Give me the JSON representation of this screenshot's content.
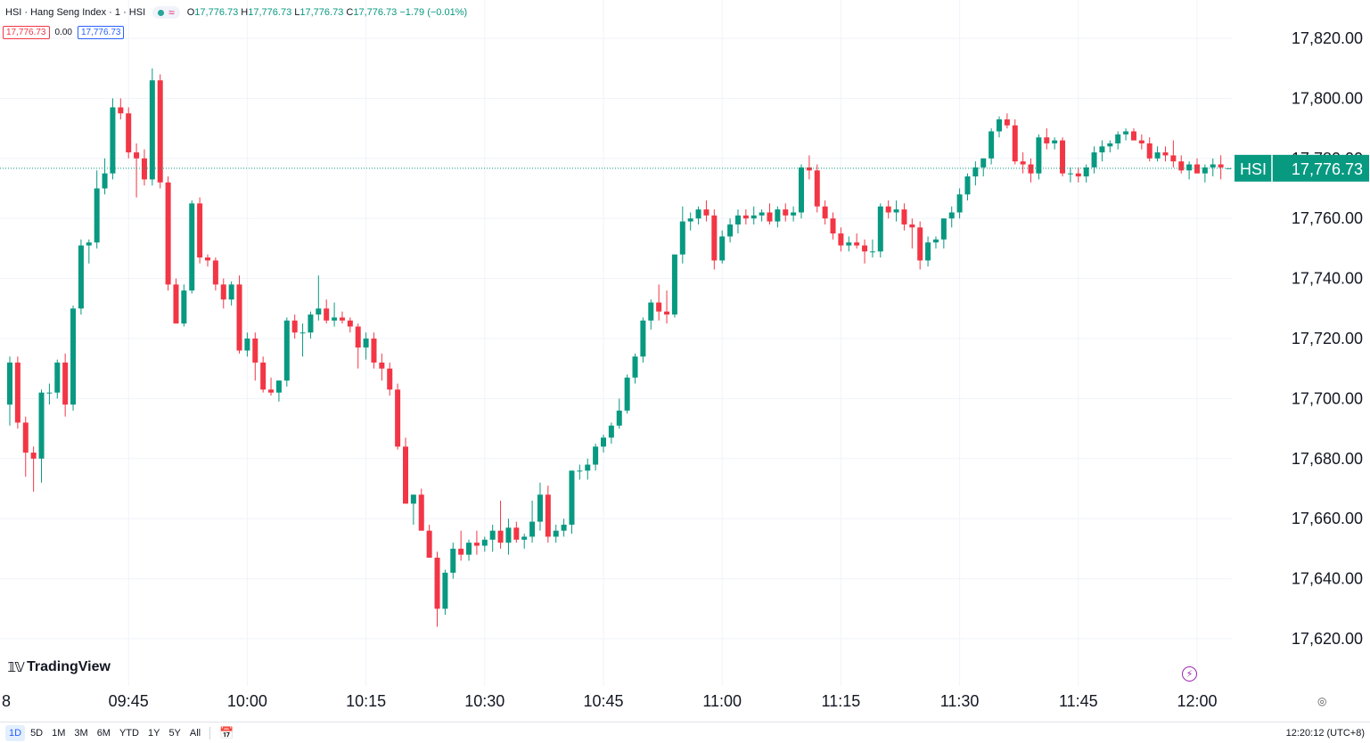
{
  "legend": {
    "title": "HSI · Hang Seng Index · 1 · HSI",
    "open_label": "O",
    "open": "17,776.73",
    "high_label": "H",
    "high": "17,776.73",
    "low_label": "L",
    "low": "17,776.73",
    "close_label": "C",
    "close": "17,776.73",
    "change": "−1.79 (−0.01%)",
    "tag_red": "17,776.73",
    "tag_zero": "0.00",
    "tag_blue": "17,776.73",
    "wave_icon": "≈"
  },
  "price_label": {
    "symbol": "HSI",
    "value": "17,776.73"
  },
  "logo_text": "TradingView",
  "bottom": {
    "ranges": [
      "1D",
      "5D",
      "1M",
      "3M",
      "6M",
      "YTD",
      "1Y",
      "5Y",
      "All"
    ],
    "active_range": "1D",
    "clock": "12:20:12 (UTC+8)"
  },
  "colors": {
    "up": "#089981",
    "down": "#f23645",
    "grid": "#f0f3fa",
    "price_tag": "#089981"
  },
  "chart_data": {
    "type": "candlestick",
    "ylim": [
      17615,
      17830
    ],
    "y_ticks": [
      17620,
      17640,
      17660,
      17680,
      17700,
      17720,
      17740,
      17760,
      17780,
      17800,
      17820
    ],
    "y_tick_labels": [
      "17,620.00",
      "17,640.00",
      "17,660.00",
      "17,680.00",
      "17,700.00",
      "17,720.00",
      "17,740.00",
      "17,760.00",
      "17,780.00",
      "17,800.00",
      "17,820.00"
    ],
    "x_tick_labels": [
      "8",
      "09:45",
      "10:00",
      "10:15",
      "10:30",
      "10:45",
      "11:00",
      "11:15",
      "11:30",
      "11:45",
      "12:00"
    ],
    "x_tick_minutes": [
      -1,
      15,
      30,
      45,
      60,
      75,
      90,
      105,
      120,
      135,
      150
    ],
    "last_price": 17776.73,
    "candles": [
      [
        17698,
        17714,
        17691,
        17712
      ],
      [
        17712,
        17714,
        17690,
        17692
      ],
      [
        17692,
        17694,
        17674,
        17682
      ],
      [
        17682,
        17684,
        17669,
        17680
      ],
      [
        17680,
        17703,
        17672,
        17702
      ],
      [
        17702,
        17705,
        17698,
        17702
      ],
      [
        17702,
        17713,
        17700,
        17712
      ],
      [
        17712,
        17715,
        17694,
        17698
      ],
      [
        17698,
        17731,
        17696,
        17730
      ],
      [
        17730,
        17753,
        17728,
        17751
      ],
      [
        17751,
        17753,
        17745,
        17752
      ],
      [
        17752,
        17776,
        17750,
        17770
      ],
      [
        17770,
        17780,
        17768,
        17775
      ],
      [
        17775,
        17800,
        17773,
        17797
      ],
      [
        17797,
        17800,
        17793,
        17795
      ],
      [
        17795,
        17797,
        17780,
        17782
      ],
      [
        17782,
        17785,
        17767,
        17780
      ],
      [
        17780,
        17783,
        17771,
        17773
      ],
      [
        17773,
        17810,
        17771,
        17806
      ],
      [
        17806,
        17808,
        17770,
        17772
      ],
      [
        17772,
        17774,
        17736,
        17738
      ],
      [
        17738,
        17740,
        17725,
        17725
      ],
      [
        17725,
        17738,
        17724,
        17736
      ],
      [
        17736,
        17766,
        17735,
        17765
      ],
      [
        17765,
        17767,
        17745,
        17747
      ],
      [
        17747,
        17748,
        17744,
        17746
      ],
      [
        17746,
        17747,
        17736,
        17738
      ],
      [
        17738,
        17740,
        17730,
        17733
      ],
      [
        17733,
        17739,
        17731,
        17738
      ],
      [
        17738,
        17741,
        17715,
        17716
      ],
      [
        17716,
        17722,
        17714,
        17720
      ],
      [
        17720,
        17722,
        17706,
        17712
      ],
      [
        17712,
        17714,
        17702,
        17703
      ],
      [
        17703,
        17707,
        17701,
        17702
      ],
      [
        17702,
        17706,
        17699,
        17706
      ],
      [
        17706,
        17727,
        17704,
        17726
      ],
      [
        17726,
        17728,
        17720,
        17722
      ],
      [
        17722,
        17725,
        17714,
        17722
      ],
      [
        17722,
        17729,
        17720,
        17728
      ],
      [
        17728,
        17741,
        17726,
        17730
      ],
      [
        17730,
        17733,
        17725,
        17726
      ],
      [
        17726,
        17732,
        17724,
        17727
      ],
      [
        17727,
        17729,
        17725,
        17726
      ],
      [
        17726,
        17727,
        17722,
        17724
      ],
      [
        17724,
        17725,
        17710,
        17717
      ],
      [
        17717,
        17722,
        17713,
        17720
      ],
      [
        17720,
        17722,
        17710,
        17712
      ],
      [
        17712,
        17715,
        17706,
        17710
      ],
      [
        17710,
        17712,
        17701,
        17703
      ],
      [
        17703,
        17705,
        17683,
        17684
      ],
      [
        17684,
        17687,
        17665,
        17665
      ],
      [
        17665,
        17668,
        17658,
        17668
      ],
      [
        17668,
        17670,
        17656,
        17656
      ],
      [
        17656,
        17658,
        17647,
        17647
      ],
      [
        17647,
        17649,
        17624,
        17630
      ],
      [
        17630,
        17643,
        17628,
        17642
      ],
      [
        17642,
        17652,
        17640,
        17650
      ],
      [
        17650,
        17656,
        17646,
        17648
      ],
      [
        17648,
        17653,
        17646,
        17652
      ],
      [
        17652,
        17656,
        17648,
        17651
      ],
      [
        17651,
        17654,
        17649,
        17653
      ],
      [
        17653,
        17658,
        17649,
        17656
      ],
      [
        17656,
        17666,
        17650,
        17652
      ],
      [
        17652,
        17660,
        17648,
        17657
      ],
      [
        17657,
        17659,
        17652,
        17653
      ],
      [
        17653,
        17655,
        17650,
        17654
      ],
      [
        17654,
        17666,
        17652,
        17659
      ],
      [
        17659,
        17672,
        17656,
        17668
      ],
      [
        17668,
        17671,
        17652,
        17654
      ],
      [
        17654,
        17658,
        17652,
        17656
      ],
      [
        17656,
        17660,
        17654,
        17658
      ],
      [
        17658,
        17676,
        17655,
        17676
      ],
      [
        17676,
        17678,
        17673,
        17676
      ],
      [
        17676,
        17680,
        17673,
        17678
      ],
      [
        17678,
        17685,
        17676,
        17684
      ],
      [
        17684,
        17688,
        17682,
        17687
      ],
      [
        17687,
        17692,
        17685,
        17691
      ],
      [
        17691,
        17700,
        17690,
        17696
      ],
      [
        17696,
        17708,
        17695,
        17707
      ],
      [
        17707,
        17715,
        17705,
        17714
      ],
      [
        17714,
        17727,
        17712,
        17726
      ],
      [
        17726,
        17733,
        17723,
        17732
      ],
      [
        17732,
        17738,
        17726,
        17729
      ],
      [
        17729,
        17736,
        17725,
        17728
      ],
      [
        17728,
        17748,
        17727,
        17748
      ],
      [
        17748,
        17764,
        17745,
        17759
      ],
      [
        17759,
        17762,
        17756,
        17760
      ],
      [
        17760,
        17764,
        17758,
        17763
      ],
      [
        17763,
        17766,
        17759,
        17761
      ],
      [
        17761,
        17763,
        17743,
        17746
      ],
      [
        17746,
        17756,
        17745,
        17754
      ],
      [
        17754,
        17760,
        17752,
        17758
      ],
      [
        17758,
        17763,
        17755,
        17761
      ],
      [
        17761,
        17763,
        17758,
        17760
      ],
      [
        17760,
        17764,
        17758,
        17761
      ],
      [
        17761,
        17763,
        17759,
        17762
      ],
      [
        17762,
        17765,
        17758,
        17759
      ],
      [
        17759,
        17764,
        17757,
        17763
      ],
      [
        17763,
        17765,
        17759,
        17761
      ],
      [
        17761,
        17764,
        17759,
        17762
      ],
      [
        17762,
        17778,
        17760,
        17777
      ],
      [
        17777,
        17781,
        17773,
        17776
      ],
      [
        17776,
        17778,
        17762,
        17764
      ],
      [
        17764,
        17766,
        17758,
        17760
      ],
      [
        17760,
        17762,
        17753,
        17755
      ],
      [
        17755,
        17757,
        17749,
        17751
      ],
      [
        17751,
        17754,
        17749,
        17752
      ],
      [
        17752,
        17755,
        17750,
        17751
      ],
      [
        17751,
        17753,
        17745,
        17749
      ],
      [
        17749,
        17753,
        17747,
        17749
      ],
      [
        17749,
        17765,
        17747,
        17764
      ],
      [
        17764,
        17766,
        17760,
        17762
      ],
      [
        17762,
        17766,
        17759,
        17763
      ],
      [
        17763,
        17765,
        17756,
        17758
      ],
      [
        17758,
        17760,
        17750,
        17757
      ],
      [
        17757,
        17759,
        17743,
        17746
      ],
      [
        17746,
        17754,
        17744,
        17752
      ],
      [
        17752,
        17754,
        17750,
        17753
      ],
      [
        17753,
        17760,
        17750,
        17760
      ],
      [
        17760,
        17764,
        17757,
        17762
      ],
      [
        17762,
        17770,
        17760,
        17768
      ],
      [
        17768,
        17775,
        17766,
        17774
      ],
      [
        17774,
        17779,
        17771,
        17777
      ],
      [
        17777,
        17780,
        17774,
        17780
      ],
      [
        17780,
        17790,
        17778,
        17789
      ],
      [
        17789,
        17794,
        17787,
        17793
      ],
      [
        17793,
        17795,
        17790,
        17791
      ],
      [
        17791,
        17793,
        17778,
        17779
      ],
      [
        17779,
        17782,
        17775,
        17778
      ],
      [
        17778,
        17780,
        17772,
        17775
      ],
      [
        17775,
        17788,
        17773,
        17787
      ],
      [
        17787,
        17790,
        17783,
        17785
      ],
      [
        17785,
        17787,
        17783,
        17786
      ],
      [
        17786,
        17787,
        17774,
        17775
      ],
      [
        17775,
        17777,
        17772,
        17775
      ],
      [
        17775,
        17777,
        17772,
        17774
      ],
      [
        17774,
        17778,
        17772,
        17777
      ],
      [
        17777,
        17784,
        17775,
        17782
      ],
      [
        17782,
        17786,
        17779,
        17784
      ],
      [
        17784,
        17786,
        17782,
        17785
      ],
      [
        17785,
        17789,
        17783,
        17788
      ],
      [
        17788,
        17790,
        17786,
        17789
      ],
      [
        17789,
        17790,
        17786,
        17786
      ],
      [
        17786,
        17788,
        17783,
        17785
      ],
      [
        17785,
        17787,
        17779,
        17780
      ],
      [
        17780,
        17784,
        17779,
        17782
      ],
      [
        17782,
        17784,
        17779,
        17781
      ],
      [
        17781,
        17786,
        17777,
        17779
      ],
      [
        17779,
        17781,
        17775,
        17776
      ],
      [
        17776,
        17779,
        17773,
        17778
      ],
      [
        17778,
        17780,
        17775,
        17775
      ],
      [
        17775,
        17778,
        17772,
        17777
      ],
      [
        17777,
        17780,
        17774,
        17778
      ],
      [
        17778,
        17781,
        17773,
        17777
      ],
      [
        17776.73,
        17776.73,
        17776.73,
        17776.73
      ]
    ]
  }
}
